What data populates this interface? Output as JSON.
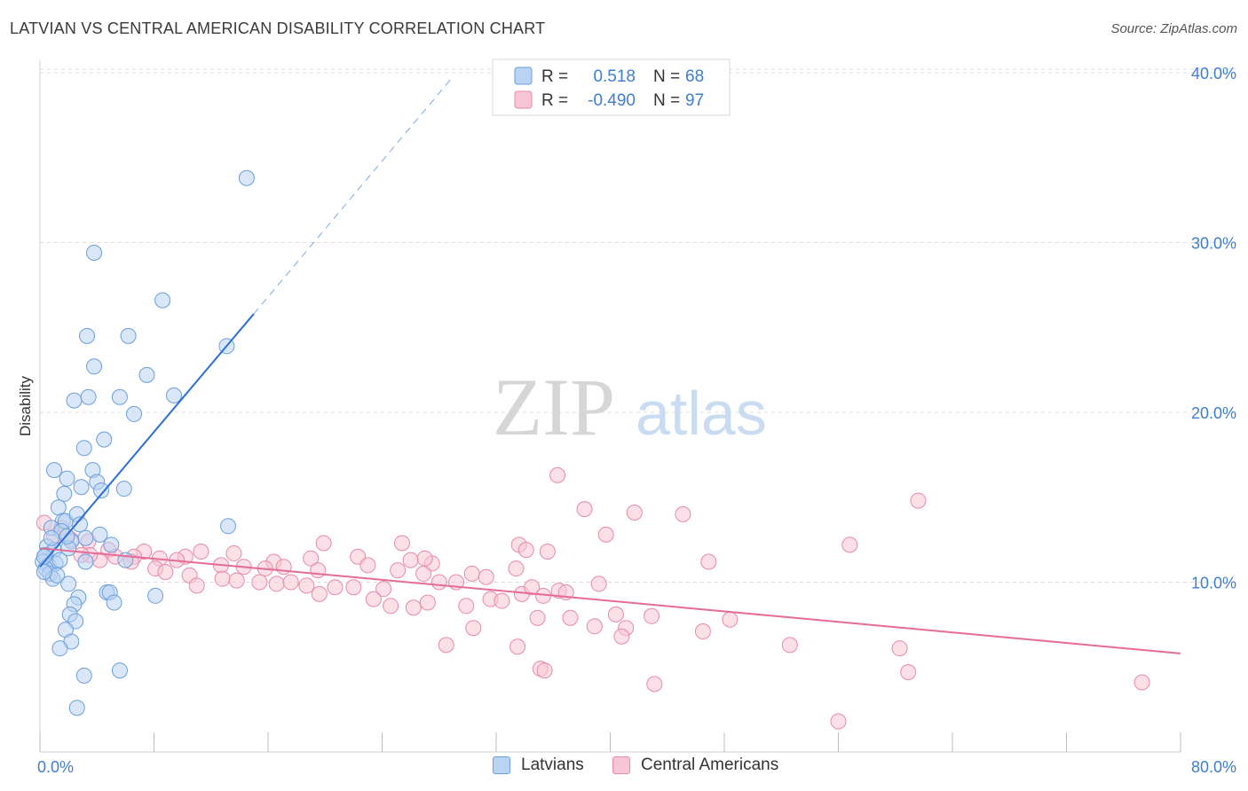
{
  "header": {
    "title": "LATVIAN VS CENTRAL AMERICAN DISABILITY CORRELATION CHART",
    "source": "Source: ZipAtlas.com"
  },
  "watermark": {
    "zip": "ZIP",
    "atlas": "atlas"
  },
  "colors": {
    "blue_fill": "#b9d3f2",
    "blue_stroke": "#6a9fdc",
    "blue_line": "#2b6fd6",
    "pink_fill": "#f7c6d6",
    "pink_stroke": "#e88aa8",
    "pink_line": "#e56b98",
    "tick_label": "#3f7dd1",
    "grid": "#dcdcdc"
  },
  "chart_data": {
    "type": "scatter",
    "ylabel": "Disability",
    "xlim": [
      0,
      80
    ],
    "ylim": [
      0,
      42
    ],
    "x_tick_labels": [
      {
        "v": 0,
        "label": "0.0%"
      },
      {
        "v": 80,
        "label": "80.0%"
      }
    ],
    "y_ticks": [
      {
        "v": 10,
        "label": "10.0%"
      },
      {
        "v": 20,
        "label": "20.0%"
      },
      {
        "v": 30,
        "label": "30.0%"
      },
      {
        "v": 40,
        "label": "40.0%"
      }
    ],
    "legend_stats": [
      {
        "r_label": "R =",
        "r_value": "0.518",
        "n_label": "N =",
        "n_value": "68"
      },
      {
        "r_label": "R =",
        "r_value": "-0.490",
        "n_label": "N =",
        "n_value": "97"
      }
    ],
    "series": [
      {
        "name": "Latvians",
        "trend": {
          "x0": 0,
          "y0": 10.9,
          "x1": 15.0,
          "y1": 25.8,
          "dash_to_x": 29,
          "dash_to_y": 39.8
        },
        "points": [
          [
            14.5,
            33.8
          ],
          [
            3.8,
            29.4
          ],
          [
            8.6,
            26.6
          ],
          [
            3.3,
            24.5
          ],
          [
            6.2,
            24.5
          ],
          [
            13.1,
            23.9
          ],
          [
            3.8,
            22.7
          ],
          [
            7.5,
            22.2
          ],
          [
            2.4,
            20.7
          ],
          [
            3.4,
            20.9
          ],
          [
            5.6,
            20.9
          ],
          [
            9.4,
            21.0
          ],
          [
            6.6,
            19.9
          ],
          [
            4.5,
            18.4
          ],
          [
            3.1,
            17.9
          ],
          [
            1.0,
            16.6
          ],
          [
            3.7,
            16.6
          ],
          [
            1.9,
            16.1
          ],
          [
            4.0,
            15.9
          ],
          [
            2.9,
            15.6
          ],
          [
            4.3,
            15.4
          ],
          [
            5.9,
            15.5
          ],
          [
            1.7,
            15.2
          ],
          [
            1.3,
            14.4
          ],
          [
            1.6,
            13.6
          ],
          [
            1.8,
            13.6
          ],
          [
            2.6,
            14.0
          ],
          [
            2.8,
            13.4
          ],
          [
            13.2,
            13.3
          ],
          [
            0.8,
            13.2
          ],
          [
            1.5,
            13.0
          ],
          [
            3.2,
            12.6
          ],
          [
            4.2,
            12.8
          ],
          [
            2.2,
            12.4
          ],
          [
            0.5,
            12.1
          ],
          [
            5.0,
            12.2
          ],
          [
            1.0,
            11.9
          ],
          [
            2.0,
            12.0
          ],
          [
            0.4,
            11.6
          ],
          [
            0.2,
            11.2
          ],
          [
            0.6,
            11.0
          ],
          [
            1.1,
            11.1
          ],
          [
            1.4,
            11.3
          ],
          [
            3.2,
            11.2
          ],
          [
            6.0,
            11.3
          ],
          [
            0.4,
            10.8
          ],
          [
            0.7,
            10.5
          ],
          [
            0.9,
            10.2
          ],
          [
            1.2,
            10.4
          ],
          [
            0.3,
            10.6
          ],
          [
            2.0,
            9.9
          ],
          [
            4.7,
            9.4
          ],
          [
            4.9,
            9.4
          ],
          [
            2.7,
            9.1
          ],
          [
            8.1,
            9.2
          ],
          [
            5.2,
            8.8
          ],
          [
            2.4,
            8.7
          ],
          [
            2.1,
            8.1
          ],
          [
            2.5,
            7.7
          ],
          [
            1.8,
            7.2
          ],
          [
            2.2,
            6.5
          ],
          [
            1.4,
            6.1
          ],
          [
            5.6,
            4.8
          ],
          [
            3.1,
            4.5
          ],
          [
            2.6,
            2.6
          ],
          [
            0.8,
            12.6
          ],
          [
            1.9,
            12.7
          ],
          [
            0.3,
            11.5
          ]
        ]
      },
      {
        "name": "Central Americans",
        "trend": {
          "x0": 0,
          "y0": 12.0,
          "x1": 80,
          "y1": 5.8
        },
        "points": [
          [
            0.3,
            13.5
          ],
          [
            36.3,
            16.3
          ],
          [
            61.6,
            14.8
          ],
          [
            38.2,
            14.3
          ],
          [
            41.7,
            14.1
          ],
          [
            45.1,
            14.0
          ],
          [
            1.5,
            13.2
          ],
          [
            39.7,
            12.8
          ],
          [
            33.6,
            12.2
          ],
          [
            56.8,
            12.2
          ],
          [
            19.9,
            12.3
          ],
          [
            25.4,
            12.3
          ],
          [
            34.1,
            11.9
          ],
          [
            35.6,
            11.8
          ],
          [
            1.0,
            12.7
          ],
          [
            2.2,
            12.5
          ],
          [
            3.4,
            12.4
          ],
          [
            4.8,
            11.9
          ],
          [
            7.3,
            11.8
          ],
          [
            11.3,
            11.8
          ],
          [
            10.2,
            11.5
          ],
          [
            8.4,
            11.4
          ],
          [
            6.6,
            11.5
          ],
          [
            5.3,
            11.5
          ],
          [
            4.2,
            11.3
          ],
          [
            3.5,
            11.6
          ],
          [
            6.4,
            11.2
          ],
          [
            9.6,
            11.3
          ],
          [
            13.6,
            11.7
          ],
          [
            16.4,
            11.2
          ],
          [
            19.0,
            11.4
          ],
          [
            22.3,
            11.5
          ],
          [
            26.0,
            11.3
          ],
          [
            27.5,
            11.1
          ],
          [
            46.9,
            11.2
          ],
          [
            12.7,
            11.0
          ],
          [
            14.3,
            10.9
          ],
          [
            15.8,
            10.8
          ],
          [
            17.1,
            10.9
          ],
          [
            19.5,
            10.7
          ],
          [
            23.0,
            11.0
          ],
          [
            25.1,
            10.7
          ],
          [
            26.9,
            10.5
          ],
          [
            30.3,
            10.5
          ],
          [
            33.4,
            10.8
          ],
          [
            8.1,
            10.8
          ],
          [
            8.8,
            10.6
          ],
          [
            10.5,
            10.4
          ],
          [
            12.8,
            10.2
          ],
          [
            13.8,
            10.1
          ],
          [
            15.4,
            10.0
          ],
          [
            16.6,
            9.9
          ],
          [
            17.6,
            10.0
          ],
          [
            18.7,
            9.8
          ],
          [
            20.7,
            9.7
          ],
          [
            22.0,
            9.7
          ],
          [
            24.1,
            9.6
          ],
          [
            28.0,
            10.0
          ],
          [
            29.2,
            10.0
          ],
          [
            11.0,
            9.8
          ],
          [
            19.6,
            9.3
          ],
          [
            23.4,
            9.0
          ],
          [
            24.6,
            8.6
          ],
          [
            26.2,
            8.5
          ],
          [
            27.2,
            8.8
          ],
          [
            29.9,
            8.6
          ],
          [
            30.4,
            7.3
          ],
          [
            31.6,
            9.0
          ],
          [
            32.4,
            8.9
          ],
          [
            33.8,
            9.3
          ],
          [
            35.3,
            9.2
          ],
          [
            36.4,
            9.5
          ],
          [
            39.2,
            9.9
          ],
          [
            31.3,
            10.3
          ],
          [
            34.5,
            9.7
          ],
          [
            37.2,
            7.9
          ],
          [
            38.9,
            7.4
          ],
          [
            40.4,
            8.1
          ],
          [
            41.1,
            7.3
          ],
          [
            42.9,
            8.0
          ],
          [
            46.5,
            7.1
          ],
          [
            48.4,
            7.8
          ],
          [
            36.9,
            9.4
          ],
          [
            34.9,
            7.9
          ],
          [
            28.5,
            6.3
          ],
          [
            33.5,
            6.2
          ],
          [
            40.8,
            6.8
          ],
          [
            52.6,
            6.3
          ],
          [
            60.3,
            6.1
          ],
          [
            35.1,
            4.9
          ],
          [
            35.4,
            4.8
          ],
          [
            43.1,
            4.0
          ],
          [
            60.9,
            4.7
          ],
          [
            77.3,
            4.1
          ],
          [
            56.0,
            1.8
          ],
          [
            2.9,
            11.6
          ],
          [
            27.0,
            11.4
          ]
        ]
      }
    ]
  }
}
